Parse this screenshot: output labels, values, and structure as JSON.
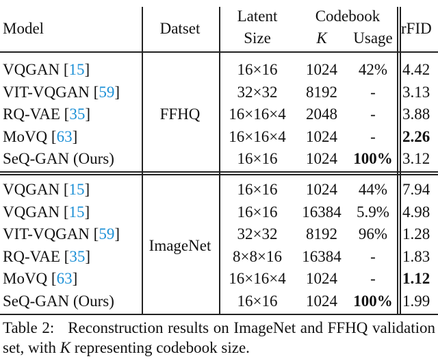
{
  "header": {
    "model": "Model",
    "dataset": "Datset",
    "latent": [
      "Latent",
      "Size"
    ],
    "codebook": "Codebook",
    "k": "K",
    "usage": "Usage",
    "rfid": "rFID"
  },
  "cite_brackets": [
    "[",
    "]"
  ],
  "groups": [
    {
      "dataset": "FFHQ",
      "rows": [
        {
          "model": "VQGAN",
          "ref": "15",
          "latent": "16×16",
          "k": "1024",
          "usage": "42%",
          "rfid": "4.42"
        },
        {
          "model": "VIT-VQGAN",
          "ref": "59",
          "latent": "32×32",
          "k": "8192",
          "usage": "-",
          "rfid": "3.13"
        },
        {
          "model": "RQ-VAE",
          "ref": "35",
          "latent": "16×16×4",
          "k": "2048",
          "usage": "-",
          "rfid": "3.88"
        },
        {
          "model": "MoVQ",
          "ref": "63",
          "latent": "16×16×4",
          "k": "1024",
          "usage": "-",
          "rfid": "2.26",
          "bold": [
            "rfid"
          ]
        },
        {
          "model": "SeQ-GAN (Ours)",
          "latent": "16×16",
          "k": "1024",
          "usage": "100%",
          "rfid": "3.12",
          "bold": [
            "usage"
          ]
        }
      ]
    },
    {
      "dataset": "ImageNet",
      "rows": [
        {
          "model": "VQGAN",
          "ref": "15",
          "latent": "16×16",
          "k": "1024",
          "usage": "44%",
          "rfid": "7.94"
        },
        {
          "model": "VQGAN",
          "ref": "15",
          "latent": "16×16",
          "k": "16384",
          "usage": "5.9%",
          "rfid": "4.98"
        },
        {
          "model": "VIT-VQGAN",
          "ref": "59",
          "latent": "32×32",
          "k": "8192",
          "usage": "96%",
          "rfid": "1.28"
        },
        {
          "model": "RQ-VAE",
          "ref": "35",
          "latent": "8×8×16",
          "k": "16384",
          "usage": "-",
          "rfid": "1.83"
        },
        {
          "model": "MoVQ",
          "ref": "63",
          "latent": "16×16×4",
          "k": "1024",
          "usage": "-",
          "rfid": "1.12",
          "bold": [
            "rfid"
          ]
        },
        {
          "model": "SeQ-GAN (Ours)",
          "latent": "16×16",
          "k": "1024",
          "usage": "100%",
          "rfid": "1.99",
          "bold": [
            "usage"
          ]
        }
      ]
    }
  ],
  "caption": {
    "label": "Table 2:",
    "text": "Reconstruction results on ImageNet and FFHQ validation set, with ",
    "symbol": "K",
    "tail": " representing codebook size."
  }
}
